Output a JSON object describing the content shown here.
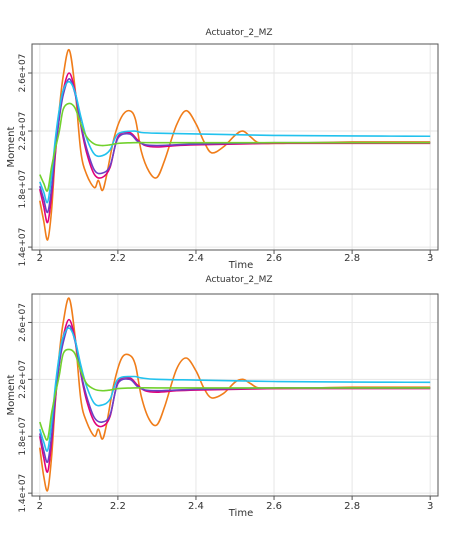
{
  "chart_data": [
    {
      "type": "line",
      "title": "Actuator_2_MZ",
      "xlabel": "Time",
      "ylabel": "Moment",
      "xlim": [
        1.98,
        3.02
      ],
      "ylim": [
        13800000,
        28000000
      ],
      "xticks": [
        2,
        2.2,
        2.4,
        2.6,
        2.8,
        3
      ],
      "xtick_labels": [
        "2",
        "2.2",
        "2.4",
        "2.6",
        "2.8",
        "3"
      ],
      "yticks": [
        14000000,
        18000000,
        22000000,
        26000000
      ],
      "ytick_labels": [
        "1.4e+07",
        "1.8e+07",
        "2.2e+07",
        "2.6e+07"
      ],
      "grid": true,
      "series": [
        {
          "color": "#f07d1a",
          "x": [
            2.0,
            2.01,
            2.02,
            2.03,
            2.04,
            2.05,
            2.06,
            2.075,
            2.09,
            2.105,
            2.12,
            2.14,
            2.15,
            2.16,
            2.17,
            2.19,
            2.21,
            2.23,
            2.245,
            2.26,
            2.28,
            2.3,
            2.32,
            2.35,
            2.375,
            2.4,
            2.42,
            2.44,
            2.47,
            2.5,
            2.52,
            2.54,
            2.56,
            2.6,
            2.7,
            2.8,
            2.9,
            3.0
          ],
          "y": [
            17200000,
            15800000,
            14500000,
            16500000,
            20500000,
            23500000,
            25800000,
            27600000,
            25000000,
            20600000,
            19000000,
            18100000,
            18600000,
            17900000,
            18800000,
            21500000,
            23000000,
            23400000,
            22800000,
            20600000,
            19200000,
            18800000,
            20000000,
            22400000,
            23400000,
            22500000,
            21300000,
            20500000,
            20900000,
            21700000,
            22000000,
            21600000,
            21200000,
            21150000,
            21200000,
            21250000,
            21250000,
            21250000
          ]
        },
        {
          "color": "#e0007a",
          "x": [
            2.0,
            2.01,
            2.02,
            2.03,
            2.04,
            2.05,
            2.06,
            2.075,
            2.09,
            2.105,
            2.12,
            2.14,
            2.16,
            2.18,
            2.2,
            2.23,
            2.25,
            2.27,
            2.3,
            2.35,
            2.4,
            2.5,
            2.6,
            2.7,
            2.8,
            2.9,
            3.0
          ],
          "y": [
            18000000,
            16800000,
            15700000,
            17500000,
            20500000,
            23000000,
            24800000,
            26000000,
            24800000,
            22400000,
            20500000,
            19000000,
            18800000,
            19500000,
            21600000,
            21900000,
            21400000,
            21000000,
            20900000,
            21000000,
            21050000,
            21100000,
            21150000,
            21150000,
            21150000,
            21150000,
            21150000
          ]
        },
        {
          "color": "#6b3fc4",
          "x": [
            2.0,
            2.01,
            2.02,
            2.03,
            2.04,
            2.05,
            2.06,
            2.075,
            2.09,
            2.105,
            2.12,
            2.14,
            2.16,
            2.18,
            2.2,
            2.23,
            2.25,
            2.27,
            2.3,
            2.35,
            2.4,
            2.5,
            2.6,
            2.7,
            2.8,
            2.9,
            3.0
          ],
          "y": [
            18200000,
            17300000,
            16400000,
            18000000,
            20800000,
            22900000,
            24500000,
            25600000,
            24600000,
            22500000,
            20800000,
            19300000,
            19100000,
            19600000,
            21500000,
            21800000,
            21300000,
            21050000,
            21000000,
            21050000,
            21100000,
            21150000,
            21200000,
            21200000,
            21200000,
            21200000,
            21200000
          ]
        },
        {
          "color": "#22c2ee",
          "x": [
            2.0,
            2.01,
            2.02,
            2.03,
            2.04,
            2.05,
            2.06,
            2.075,
            2.09,
            2.105,
            2.12,
            2.14,
            2.16,
            2.18,
            2.2,
            2.24,
            2.26,
            2.3,
            2.4,
            2.5,
            2.6,
            2.7,
            2.8,
            2.9,
            3.0
          ],
          "y": [
            18500000,
            17800000,
            17100000,
            18900000,
            21500000,
            23500000,
            24800000,
            25400000,
            24700000,
            23000000,
            21500000,
            20400000,
            20300000,
            20700000,
            21800000,
            22000000,
            21900000,
            21850000,
            21800000,
            21750000,
            21700000,
            21680000,
            21660000,
            21650000,
            21640000
          ]
        },
        {
          "color": "#72d12e",
          "x": [
            2.0,
            2.01,
            2.02,
            2.03,
            2.04,
            2.05,
            2.06,
            2.075,
            2.09,
            2.105,
            2.12,
            2.14,
            2.16,
            2.18,
            2.2,
            2.24,
            2.3,
            2.4,
            2.5,
            2.6,
            2.7,
            2.8,
            2.9,
            3.0
          ],
          "y": [
            19000000,
            18400000,
            17900000,
            19500000,
            20800000,
            22000000,
            23500000,
            23900000,
            23600000,
            22500000,
            21600000,
            21100000,
            21000000,
            21050000,
            21150000,
            21200000,
            21200000,
            21200000,
            21200000,
            21200000,
            21200000,
            21200000,
            21200000,
            21200000
          ]
        }
      ]
    },
    {
      "type": "line",
      "title": "Actuator_2_MZ",
      "xlabel": "Time",
      "ylabel": "Moment",
      "xlim": [
        1.98,
        3.02
      ],
      "ylim": [
        13800000,
        28000000
      ],
      "xticks": [
        2,
        2.2,
        2.4,
        2.6,
        2.8,
        3
      ],
      "xtick_labels": [
        "2",
        "2.2",
        "2.4",
        "2.6",
        "2.8",
        "3"
      ],
      "yticks": [
        14000000,
        18000000,
        22000000,
        26000000
      ],
      "ytick_labels": [
        "1.4e+07",
        "1.8e+07",
        "2.2e+07",
        "2.6e+07"
      ],
      "grid": true,
      "series": [
        {
          "color": "#f07d1a",
          "x": [
            2.0,
            2.01,
            2.02,
            2.03,
            2.04,
            2.05,
            2.06,
            2.075,
            2.09,
            2.105,
            2.12,
            2.14,
            2.15,
            2.16,
            2.17,
            2.19,
            2.21,
            2.23,
            2.245,
            2.26,
            2.28,
            2.3,
            2.32,
            2.35,
            2.375,
            2.4,
            2.42,
            2.44,
            2.47,
            2.5,
            2.52,
            2.54,
            2.56,
            2.6,
            2.7,
            2.8,
            2.9,
            3.0
          ],
          "y": [
            17200000,
            15200000,
            14200000,
            16500000,
            20500000,
            23800000,
            26000000,
            27700000,
            25100000,
            20600000,
            19000000,
            18000000,
            18500000,
            17800000,
            18700000,
            21700000,
            23500000,
            23700000,
            23000000,
            20800000,
            19200000,
            18800000,
            20100000,
            22700000,
            23500000,
            22600000,
            21400000,
            20700000,
            21000000,
            21800000,
            22000000,
            21700000,
            21400000,
            21350000,
            21400000,
            21450000,
            21450000,
            21450000
          ]
        },
        {
          "color": "#e0007a",
          "x": [
            2.0,
            2.01,
            2.02,
            2.03,
            2.04,
            2.05,
            2.06,
            2.075,
            2.09,
            2.105,
            2.12,
            2.14,
            2.16,
            2.18,
            2.2,
            2.23,
            2.25,
            2.27,
            2.3,
            2.35,
            2.4,
            2.5,
            2.6,
            2.7,
            2.8,
            2.9,
            3.0
          ],
          "y": [
            18000000,
            16500000,
            15500000,
            17500000,
            20600000,
            23200000,
            25000000,
            26200000,
            24900000,
            22400000,
            20500000,
            19000000,
            18700000,
            19400000,
            21800000,
            22100000,
            21600000,
            21200000,
            21100000,
            21200000,
            21250000,
            21300000,
            21350000,
            21350000,
            21350000,
            21350000,
            21350000
          ]
        },
        {
          "color": "#6b3fc4",
          "x": [
            2.0,
            2.01,
            2.02,
            2.03,
            2.04,
            2.05,
            2.06,
            2.075,
            2.09,
            2.105,
            2.12,
            2.14,
            2.16,
            2.18,
            2.2,
            2.23,
            2.25,
            2.27,
            2.3,
            2.35,
            2.4,
            2.5,
            2.6,
            2.7,
            2.8,
            2.9,
            3.0
          ],
          "y": [
            18200000,
            17000000,
            16200000,
            18000000,
            20900000,
            23100000,
            24600000,
            25800000,
            24700000,
            22500000,
            20800000,
            19300000,
            19000000,
            19500000,
            21700000,
            22000000,
            21500000,
            21250000,
            21200000,
            21250000,
            21300000,
            21350000,
            21400000,
            21400000,
            21400000,
            21400000,
            21400000
          ]
        },
        {
          "color": "#22c2ee",
          "x": [
            2.0,
            2.01,
            2.02,
            2.03,
            2.04,
            2.05,
            2.06,
            2.075,
            2.09,
            2.105,
            2.12,
            2.14,
            2.16,
            2.18,
            2.2,
            2.24,
            2.26,
            2.3,
            2.4,
            2.5,
            2.6,
            2.7,
            2.8,
            2.9,
            3.0
          ],
          "y": [
            18500000,
            17600000,
            17000000,
            18900000,
            21600000,
            23700000,
            25000000,
            25600000,
            24800000,
            23000000,
            21500000,
            20300000,
            20200000,
            20600000,
            22000000,
            22200000,
            22100000,
            22000000,
            21950000,
            21900000,
            21850000,
            21830000,
            21810000,
            21800000,
            21790000
          ]
        },
        {
          "color": "#72d12e",
          "x": [
            2.0,
            2.01,
            2.02,
            2.03,
            2.04,
            2.05,
            2.06,
            2.075,
            2.09,
            2.105,
            2.12,
            2.14,
            2.16,
            2.18,
            2.2,
            2.24,
            2.3,
            2.4,
            2.5,
            2.6,
            2.7,
            2.8,
            2.9,
            3.0
          ],
          "y": [
            19000000,
            18200000,
            17800000,
            19600000,
            21000000,
            22300000,
            23800000,
            24100000,
            23800000,
            22600000,
            21700000,
            21300000,
            21200000,
            21250000,
            21350000,
            21400000,
            21400000,
            21400000,
            21400000,
            21400000,
            21400000,
            21400000,
            21400000,
            21400000
          ]
        }
      ]
    }
  ]
}
